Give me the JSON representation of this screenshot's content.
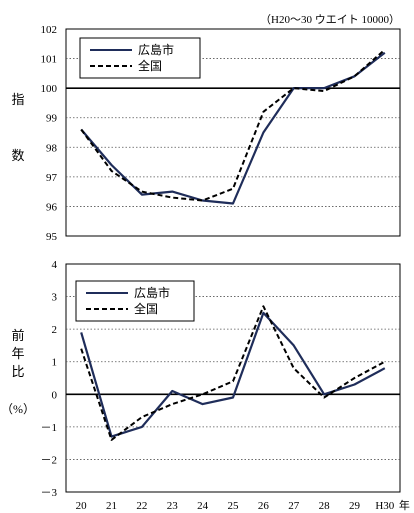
{
  "chart_data": [
    {
      "type": "line",
      "title": "（H20～30 ウエイト 10000）",
      "ylabel_chars": [
        "指",
        "数"
      ],
      "ylim": [
        95,
        102
      ],
      "yticks": [
        "95",
        "96",
        "97",
        "98",
        "99",
        "100",
        "101",
        "102"
      ],
      "reference_line": 100,
      "grid": true,
      "legend": "top-left",
      "x": [
        "20",
        "21",
        "22",
        "23",
        "24",
        "25",
        "26",
        "27",
        "28",
        "29",
        "H30"
      ],
      "series": [
        {
          "name": "広島市",
          "style": "solid",
          "color": "#1f2d5a",
          "values": [
            98.6,
            97.4,
            96.4,
            96.5,
            96.2,
            96.1,
            98.5,
            100.0,
            100.0,
            100.4,
            101.2
          ]
        },
        {
          "name": "全国",
          "style": "dashed",
          "color": "#000000",
          "values": [
            98.6,
            97.2,
            96.5,
            96.3,
            96.2,
            96.6,
            99.2,
            100.0,
            99.9,
            100.4,
            101.3
          ]
        }
      ]
    },
    {
      "type": "line",
      "ylabel_chars": [
        "前",
        "年",
        "比"
      ],
      "yunit": "（%）",
      "ylim": [
        -3,
        4
      ],
      "yticks": [
        "－3",
        "－2",
        "－1",
        "0",
        "1",
        "2",
        "3",
        "4"
      ],
      "reference_line": 0,
      "grid": true,
      "legend": "top-left",
      "x": [
        "20",
        "21",
        "22",
        "23",
        "24",
        "25",
        "26",
        "27",
        "28",
        "29",
        "H30"
      ],
      "xsuffix": "年",
      "series": [
        {
          "name": "広島市",
          "style": "solid",
          "color": "#1f2d5a",
          "values": [
            1.9,
            -1.3,
            -1.0,
            0.1,
            -0.3,
            -0.1,
            2.5,
            1.5,
            0.0,
            0.3,
            0.8
          ]
        },
        {
          "name": "全国",
          "style": "dashed",
          "color": "#000000",
          "values": [
            1.4,
            -1.4,
            -0.7,
            -0.3,
            0.0,
            0.4,
            2.7,
            0.8,
            -0.1,
            0.5,
            1.0
          ]
        }
      ]
    }
  ]
}
